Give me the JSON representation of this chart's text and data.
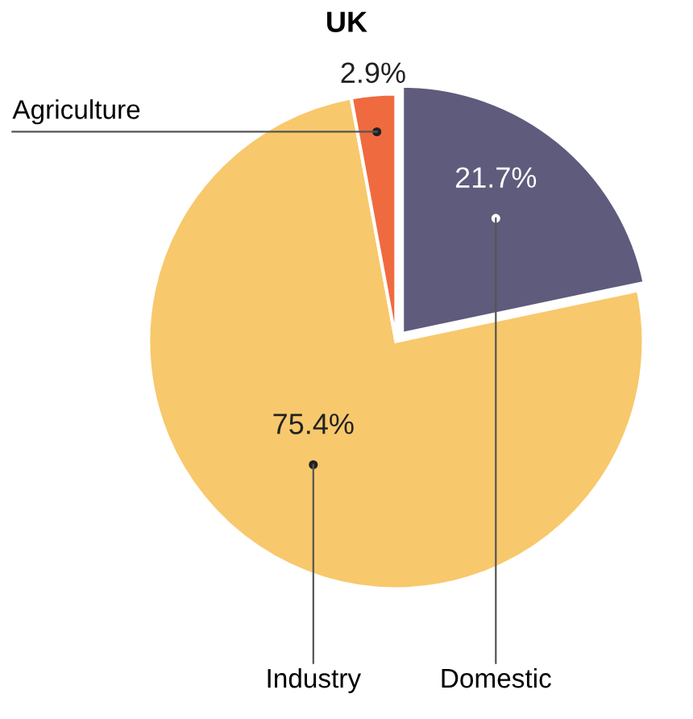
{
  "chart_data": {
    "type": "pie",
    "title": "UK",
    "categories": [
      "Domestic",
      "Industry",
      "Agriculture"
    ],
    "values": [
      21.7,
      75.4,
      2.9
    ],
    "colors": [
      "#5e5b7c",
      "#f8c86c",
      "#f06a3f"
    ],
    "value_labels": [
      "21.7%",
      "75.4%",
      "2.9%"
    ]
  }
}
